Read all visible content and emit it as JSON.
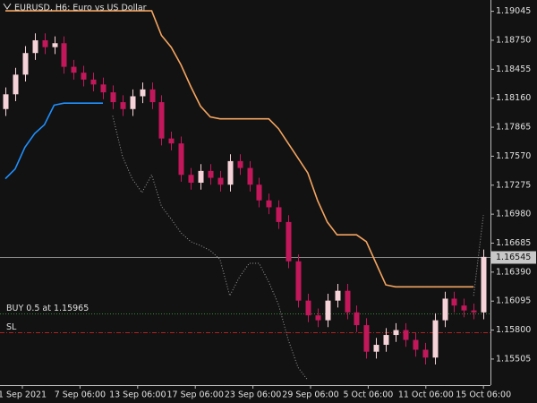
{
  "chart_data": {
    "type": "candlestick",
    "title": "EURUSD, H6:  Euro vs US Dollar",
    "x_labels": [
      "1 Sep 2021",
      "7 Sep 06:00",
      "13 Sep 06:00",
      "17 Sep 06:00",
      "23 Sep 06:00",
      "29 Sep 06:00",
      "5 Oct 06:00",
      "11 Oct 06:00",
      "15 Oct 06:00"
    ],
    "open": [
      1.1805,
      1.182,
      1.184,
      1.1862,
      1.1875,
      1.1868,
      1.1872,
      1.1848,
      1.1842,
      1.1835,
      1.183,
      1.1822,
      1.1812,
      1.1805,
      1.1818,
      1.1825,
      1.1812,
      1.1775,
      1.177,
      1.1738,
      1.173,
      1.1742,
      1.1735,
      1.1728,
      1.1752,
      1.1745,
      1.1728,
      1.1712,
      1.1705,
      1.169,
      1.165,
      1.161,
      1.1595,
      1.159,
      1.161,
      1.162,
      1.1598,
      1.1585,
      1.1558,
      1.1565,
      1.1575,
      1.158,
      1.157,
      1.156,
      1.1552,
      1.159,
      1.1612,
      1.1605,
      1.16,
      1.1598
    ],
    "high": [
      1.1827,
      1.1847,
      1.1869,
      1.1882,
      1.1882,
      1.1879,
      1.1879,
      1.1855,
      1.1849,
      1.1842,
      1.1837,
      1.1829,
      1.1819,
      1.1825,
      1.1832,
      1.1832,
      1.1819,
      1.1782,
      1.1777,
      1.1745,
      1.1749,
      1.1749,
      1.1742,
      1.1759,
      1.1759,
      1.1752,
      1.1735,
      1.1719,
      1.1712,
      1.1697,
      1.1657,
      1.1617,
      1.1602,
      1.1617,
      1.1627,
      1.1627,
      1.1605,
      1.1592,
      1.1572,
      1.1582,
      1.1587,
      1.1587,
      1.1577,
      1.1567,
      1.1597,
      1.1619,
      1.1619,
      1.1612,
      1.1607,
      1.1662
    ],
    "low": [
      1.1798,
      1.1813,
      1.1833,
      1.1855,
      1.1861,
      1.1861,
      1.1841,
      1.1835,
      1.1828,
      1.1823,
      1.1815,
      1.1805,
      1.1798,
      1.1798,
      1.1811,
      1.1805,
      1.1768,
      1.1763,
      1.1731,
      1.1723,
      1.1723,
      1.1728,
      1.1721,
      1.1721,
      1.1738,
      1.1721,
      1.1705,
      1.1698,
      1.1683,
      1.1643,
      1.1603,
      1.1588,
      1.1583,
      1.1583,
      1.1603,
      1.1591,
      1.1578,
      1.1551,
      1.1551,
      1.1558,
      1.1568,
      1.1563,
      1.1553,
      1.1545,
      1.1545,
      1.1583,
      1.1598,
      1.1593,
      1.1591,
      1.1591
    ],
    "close": [
      1.182,
      1.184,
      1.1862,
      1.1875,
      1.1868,
      1.1872,
      1.1848,
      1.1842,
      1.1835,
      1.183,
      1.1822,
      1.1812,
      1.1805,
      1.1818,
      1.1825,
      1.1812,
      1.1775,
      1.177,
      1.1738,
      1.173,
      1.1742,
      1.1735,
      1.1728,
      1.1752,
      1.1745,
      1.1728,
      1.1712,
      1.1705,
      1.169,
      1.165,
      1.161,
      1.1595,
      1.159,
      1.161,
      1.162,
      1.1598,
      1.1585,
      1.1558,
      1.1565,
      1.1575,
      1.158,
      1.157,
      1.156,
      1.1552,
      1.159,
      1.1612,
      1.1605,
      1.16,
      1.1598,
      1.16545
    ],
    "up_color": "#f6d3d8",
    "down_color": "#c2185b",
    "lines": [
      {
        "color": "#f4a460",
        "style": "solid",
        "values": [
          1.1905,
          1.1905,
          1.1905,
          1.1905,
          1.1905,
          1.1905,
          1.1905,
          1.1905,
          1.1905,
          1.1905,
          1.1905,
          1.1905,
          1.1905,
          1.1905,
          1.1905,
          1.1905,
          1.188,
          1.1868,
          1.185,
          1.1828,
          1.1808,
          1.1797,
          1.1795,
          1.1795,
          1.1795,
          1.1795,
          1.1795,
          1.1795,
          1.1785,
          1.177,
          1.1755,
          1.174,
          1.1712,
          1.169,
          1.1677,
          1.1677,
          1.1677,
          1.167,
          1.1648,
          1.1626,
          1.1624,
          1.1624,
          1.1624,
          1.1624,
          1.1624,
          1.1624,
          1.1624,
          1.1624,
          1.1624,
          null
        ]
      },
      {
        "color": "#1e90ff",
        "style": "solid",
        "values": [
          1.1734,
          1.1744,
          1.1766,
          1.178,
          1.1789,
          1.1809,
          1.1811,
          1.1811,
          1.1811,
          1.1811,
          1.1811,
          null,
          null,
          null,
          null,
          null,
          null,
          null,
          null,
          null,
          null,
          null,
          null,
          null,
          null,
          null,
          null,
          null,
          null,
          null,
          null,
          null,
          null,
          null,
          null,
          null,
          null,
          null,
          null,
          null,
          null,
          null,
          null,
          null,
          null,
          null,
          null,
          null,
          null,
          null
        ]
      },
      {
        "color": "#9a9a9a",
        "style": "dotted",
        "values": [
          null,
          null,
          null,
          null,
          null,
          null,
          null,
          null,
          null,
          null,
          null,
          1.1798,
          1.1757,
          1.1734,
          1.172,
          1.1738,
          1.1706,
          1.1693,
          1.1679,
          1.167,
          1.1666,
          1.1661,
          1.1652,
          1.1615,
          1.1634,
          1.1648,
          1.1648,
          1.1629,
          1.1606,
          1.157,
          1.1542,
          1.1529,
          null,
          null,
          null,
          null,
          null,
          null,
          null,
          null,
          null,
          null,
          null,
          null,
          null,
          null,
          null,
          null,
          1.1615,
          1.1697
        ]
      }
    ],
    "levels": [
      {
        "label": "BUY 0.5 at 1.15965",
        "value": 1.15965,
        "color": "#2e8b2e",
        "style": "dotted"
      },
      {
        "label": "SL",
        "value": 1.1578,
        "color": "#b22222",
        "style": "dashdot"
      }
    ],
    "last_price": 1.16545,
    "ylim": [
      1.1524,
      1.1916
    ],
    "yticks": [
      1.19045,
      {
        "value": 1.1875,
        "label": "1.18750"
      },
      1.18455,
      {
        "value": 1.1816,
        "label": "1.18160"
      },
      1.17865,
      {
        "value": 1.1757,
        "label": "1.17570"
      },
      1.17275,
      {
        "value": 1.1698,
        "label": "1.16980"
      },
      1.16685,
      {
        "value": 1.1639,
        "label": "1.16390"
      },
      1.16095,
      {
        "value": 1.158,
        "label": "1.15800"
      },
      1.15505
    ]
  }
}
